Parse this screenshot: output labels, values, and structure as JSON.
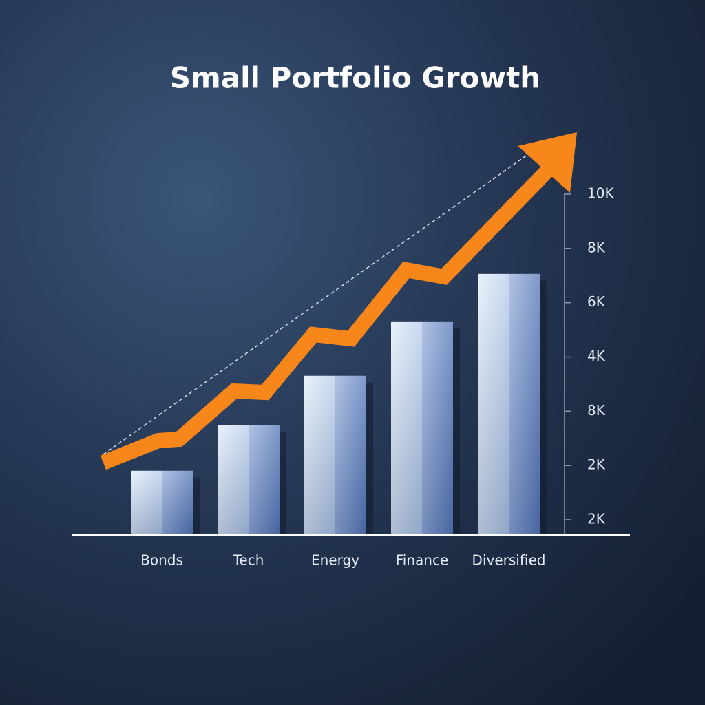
{
  "chart_data": {
    "type": "bar",
    "title": "Small Portfolio Growth",
    "categories": [
      "Bonds",
      "Tech",
      "Energy",
      "Finance",
      "Diversified"
    ],
    "values": [
      1850,
      3200,
      4650,
      6250,
      7650
    ],
    "ylim": [
      0,
      10000
    ],
    "y_axis_labels": [
      "10K",
      "8K",
      "6K",
      "4K",
      "8K",
      "2K",
      "2K"
    ],
    "color": "#9fb6df",
    "trend_color": "#f7861b"
  }
}
